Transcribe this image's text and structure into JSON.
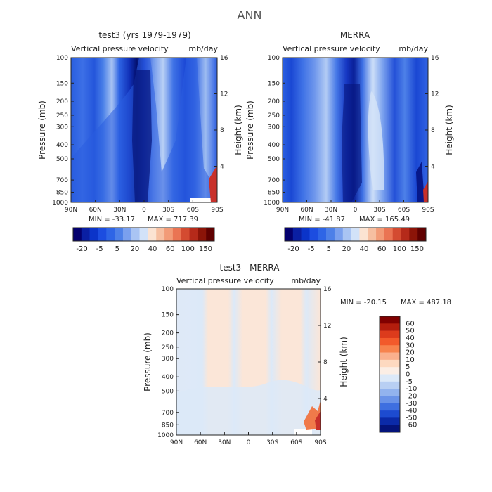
{
  "figure": {
    "title": "ANN"
  },
  "chart_data": [
    {
      "type": "heatmap",
      "id": "p1",
      "title": "test3 (yrs 1979-1979)",
      "subtitle_left": "Vertical pressure velocity",
      "subtitle_right": "mb/day",
      "ylabel": "Pressure (mb)",
      "y2label": "Height (km)",
      "x_ticks": [
        "90N",
        "60N",
        "30N",
        "0",
        "30S",
        "60S",
        "90S"
      ],
      "y_ticks": [
        100,
        150,
        200,
        250,
        300,
        400,
        500,
        700,
        850,
        1000
      ],
      "y2_ticks": [
        4,
        8,
        12,
        16
      ],
      "min_label": "MIN = -33.17",
      "max_label": "MAX = 717.39",
      "colorbar": {
        "orientation": "horizontal",
        "tick_labels": [
          "-20",
          "-5",
          "5",
          "20",
          "40",
          "60",
          "100",
          "150"
        ],
        "colors": [
          "#04006e",
          "#0a1fa3",
          "#0b34c9",
          "#1c4de0",
          "#2e65e6",
          "#4d80e8",
          "#7aa0ee",
          "#a9c4f3",
          "#d2e2f8",
          "#fbe3d2",
          "#f6bfa1",
          "#f29b77",
          "#ea7453",
          "#d44b31",
          "#b52a1a",
          "#8c1408",
          "#600000"
        ]
      }
    },
    {
      "type": "heatmap",
      "id": "p2",
      "title": "MERRA",
      "subtitle_left": "Vertical pressure velocity",
      "subtitle_right": "mb/day",
      "ylabel": "Pressure (mb)",
      "y2label": "Height (km)",
      "x_ticks": [
        "90N",
        "60N",
        "30N",
        "0",
        "30S",
        "60S",
        "90S"
      ],
      "y_ticks": [
        100,
        150,
        200,
        250,
        300,
        400,
        500,
        700,
        850,
        1000
      ],
      "y2_ticks": [
        4,
        8,
        12,
        16
      ],
      "min_label": "MIN = -41.87",
      "max_label": "MAX = 165.49",
      "colorbar": {
        "orientation": "horizontal",
        "tick_labels": [
          "-20",
          "-5",
          "5",
          "20",
          "40",
          "60",
          "100",
          "150"
        ],
        "colors": [
          "#04006e",
          "#0a1fa3",
          "#0b34c9",
          "#1c4de0",
          "#2e65e6",
          "#4d80e8",
          "#7aa0ee",
          "#a9c4f3",
          "#d2e2f8",
          "#fbe3d2",
          "#f6bfa1",
          "#f29b77",
          "#ea7453",
          "#d44b31",
          "#b52a1a",
          "#8c1408",
          "#600000"
        ]
      }
    },
    {
      "type": "heatmap",
      "id": "p3",
      "title": "test3 - MERRA",
      "subtitle_left": "Vertical pressure velocity",
      "subtitle_right": "mb/day",
      "ylabel": "Pressure (mb)",
      "y2label": "Height (km)",
      "x_ticks": [
        "90N",
        "60N",
        "30N",
        "0",
        "30S",
        "60S",
        "90S"
      ],
      "y_ticks": [
        100,
        150,
        200,
        250,
        300,
        400,
        500,
        700,
        850,
        1000
      ],
      "y2_ticks": [
        4,
        8,
        12,
        16
      ],
      "min_label": "MIN = -20.15",
      "max_label": "MAX = 487.18",
      "colorbar": {
        "orientation": "vertical",
        "tick_labels": [
          "60",
          "50",
          "40",
          "30",
          "20",
          "10",
          "5",
          "0",
          "-5",
          "-10",
          "-20",
          "-30",
          "-40",
          "-50",
          "-60"
        ],
        "colors": [
          "#800000",
          "#b31d0d",
          "#dc3b1c",
          "#f25a2b",
          "#f7834d",
          "#fab08d",
          "#fdd9c0",
          "#fbeee5",
          "#dce9f8",
          "#b8cff3",
          "#92b3ee",
          "#6a93e8",
          "#3e6fe0",
          "#1d4bd0",
          "#0b2aa8",
          "#04137a"
        ]
      }
    }
  ]
}
